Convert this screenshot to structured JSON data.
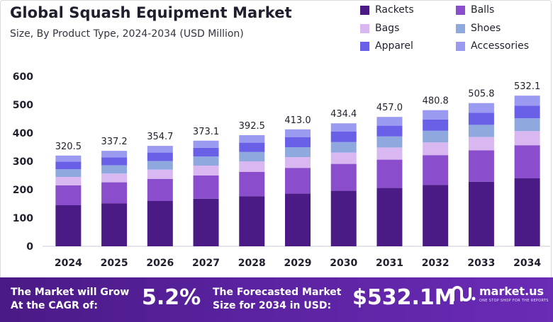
{
  "header": {
    "title": "Global Squash Equipment Market",
    "subtitle": "Size, By Product Type, 2024-2034 (USD Million)"
  },
  "colors": {
    "rackets": "#4a1a85",
    "balls": "#8a4dcc",
    "bags": "#d9b7f0",
    "shoes": "#8fa8de",
    "apparel": "#6a60e8",
    "accessories": "#9a9af0",
    "footer": "#5a22a0"
  },
  "chart_data": {
    "type": "bar",
    "stacked": true,
    "title": "Global Squash Equipment Market",
    "subtitle": "Size, By Product Type, 2024-2034 (USD Million)",
    "categories": [
      "2024",
      "2025",
      "2026",
      "2027",
      "2028",
      "2029",
      "2030",
      "2031",
      "2032",
      "2033",
      "2034"
    ],
    "totals": [
      320.5,
      337.2,
      354.7,
      373.1,
      392.5,
      413.0,
      434.4,
      457.0,
      480.8,
      505.8,
      532.1
    ],
    "total_labels": [
      "320.5",
      "337.2",
      "354.7",
      "373.1",
      "392.5",
      "413.0",
      "434.4",
      "457.0",
      "480.8",
      "505.8",
      "532.1"
    ],
    "series": [
      {
        "name": "Rackets",
        "values": [
          145,
          152,
          160,
          168,
          177,
          186,
          196,
          206,
          217,
          228,
          240
        ]
      },
      {
        "name": "Balls",
        "values": [
          70,
          74,
          78,
          82,
          86,
          91,
          95,
          100,
          105,
          111,
          117
        ]
      },
      {
        "name": "Bags",
        "values": [
          30,
          31,
          33,
          35,
          37,
          38,
          40,
          43,
          45,
          47,
          50
        ]
      },
      {
        "name": "Shoes",
        "values": [
          27,
          29,
          30,
          32,
          33,
          35,
          37,
          39,
          41,
          43,
          45
        ]
      },
      {
        "name": "Apparel",
        "values": [
          27,
          28,
          30,
          31,
          33,
          35,
          37,
          38,
          40,
          43,
          45
        ]
      },
      {
        "name": "Accessories",
        "values": [
          21.5,
          23.2,
          23.7,
          25.1,
          26.5,
          28,
          29.4,
          31,
          32.8,
          33.8,
          35.1
        ]
      }
    ],
    "ylim": [
      0,
      600
    ],
    "yticks": [
      0,
      100,
      200,
      300,
      400,
      500,
      600
    ],
    "xlabel": "",
    "ylabel": "",
    "grid": false,
    "legend_position": "top-right"
  },
  "legend": {
    "items": [
      "Rackets",
      "Balls",
      "Bags",
      "Shoes",
      "Apparel",
      "Accessories"
    ]
  },
  "footer": {
    "cagr_label_line1": "The Market will Grow",
    "cagr_label_line2": "At the CAGR of:",
    "cagr_value": "5.2%",
    "forecast_label_line1": "The Forecasted Market",
    "forecast_label_line2": "Size for 2034 in USD:",
    "forecast_value": "$532.1M",
    "brand_name": "market.us",
    "brand_tagline": "ONE STOP SHOP FOR THE REPORTS"
  }
}
